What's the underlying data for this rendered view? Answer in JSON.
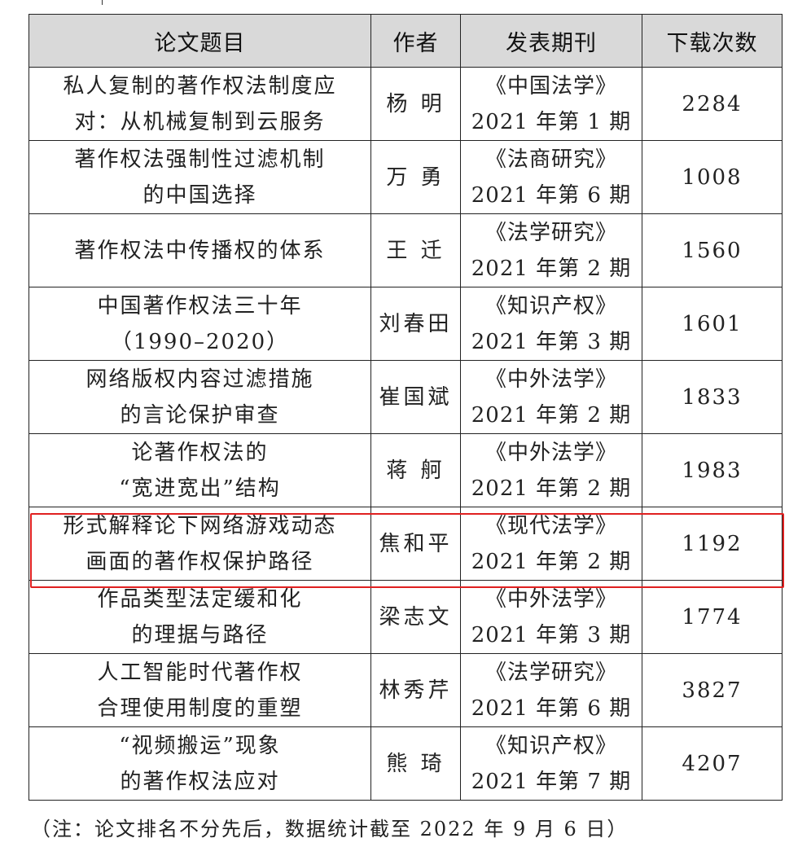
{
  "table": {
    "headers": [
      "论文题目",
      "作者",
      "发表期刊",
      "下载次数"
    ],
    "rows": [
      {
        "title_l1": "私人复制的著作权法制度应",
        "title_l2": "对：从机械复制到云服务",
        "author": "杨 明",
        "journal": "《中国法学》",
        "issue": "2021 年第 1 期",
        "downloads": "2284"
      },
      {
        "title_l1": "著作权法强制性过滤机制",
        "title_l2": "的中国选择",
        "author": "万 勇",
        "journal": "《法商研究》",
        "issue": "2021 年第 6 期",
        "downloads": "1008"
      },
      {
        "title_l1": "著作权法中传播权的体系",
        "title_l2": "",
        "author": "王 迁",
        "journal": "《法学研究》",
        "issue": "2021 年第 2 期",
        "downloads": "1560"
      },
      {
        "title_l1": "中国著作权法三十年",
        "title_l2": "（1990–2020）",
        "author": "刘春田",
        "journal": "《知识产权》",
        "issue": "2021 年第 3 期",
        "downloads": "1601"
      },
      {
        "title_l1": "网络版权内容过滤措施",
        "title_l2": "的言论保护审查",
        "author": "崔国斌",
        "journal": "《中外法学》",
        "issue": "2021 年第 2 期",
        "downloads": "1833"
      },
      {
        "title_l1": "论著作权法的",
        "title_l2": "“宽进宽出”结构",
        "author": "蒋 舸",
        "journal": "《中外法学》",
        "issue": "2021 年第 2 期",
        "downloads": "1983"
      },
      {
        "title_l1": "形式解释论下网络游戏动态",
        "title_l2": "画面的著作权保护路径",
        "author": "焦和平",
        "journal": "《现代法学》",
        "issue": "2021 年第 2 期",
        "downloads": "1192",
        "highlighted": true
      },
      {
        "title_l1": "作品类型法定缓和化",
        "title_l2": "的理据与路径",
        "author": "梁志文",
        "journal": "《中外法学》",
        "issue": "2021 年第 3 期",
        "downloads": "1774"
      },
      {
        "title_l1": "人工智能时代著作权",
        "title_l2": "合理使用制度的重塑",
        "author": "林秀芹",
        "journal": "《法学研究》",
        "issue": "2021 年第 6 期",
        "downloads": "3827"
      },
      {
        "title_l1": "“视频搬运”现象",
        "title_l2": "的著作权法应对",
        "author": "熊 琦",
        "journal": "《知识产权》",
        "issue": "2021 年第 7 期",
        "downloads": "4207"
      }
    ]
  },
  "note": "（注：论文排名不分先后，数据统计截至 2022 年 9 月 6 日）",
  "colors": {
    "header_bg": "#d9d9d9",
    "highlight": "#e02020"
  }
}
